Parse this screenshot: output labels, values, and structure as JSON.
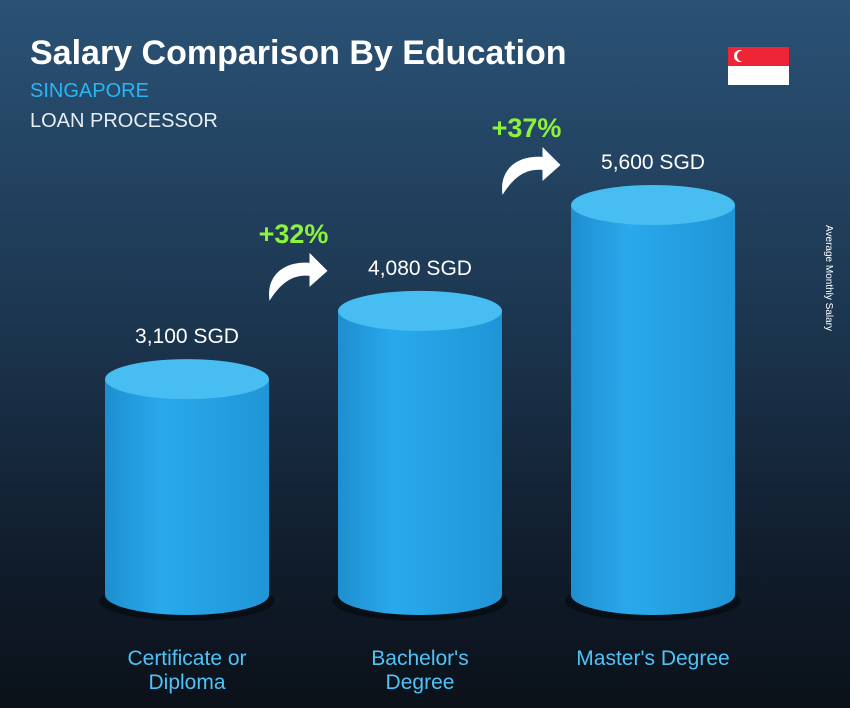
{
  "chart_data": {
    "type": "bar",
    "title": "Salary Comparison By Education",
    "subtitle": "SINGAPORE",
    "job_title": "LOAN PROCESSOR",
    "y_axis_label": "Average Monthly Salary",
    "categories": [
      "Certificate or Diploma",
      "Bachelor's Degree",
      "Master's Degree"
    ],
    "values": [
      3100,
      4080,
      5600
    ],
    "value_labels": [
      "3,100 SGD",
      "4,080 SGD",
      "5,600 SGD"
    ],
    "changes": [
      "+32%",
      "+37%"
    ],
    "color": "#29a9ec"
  }
}
